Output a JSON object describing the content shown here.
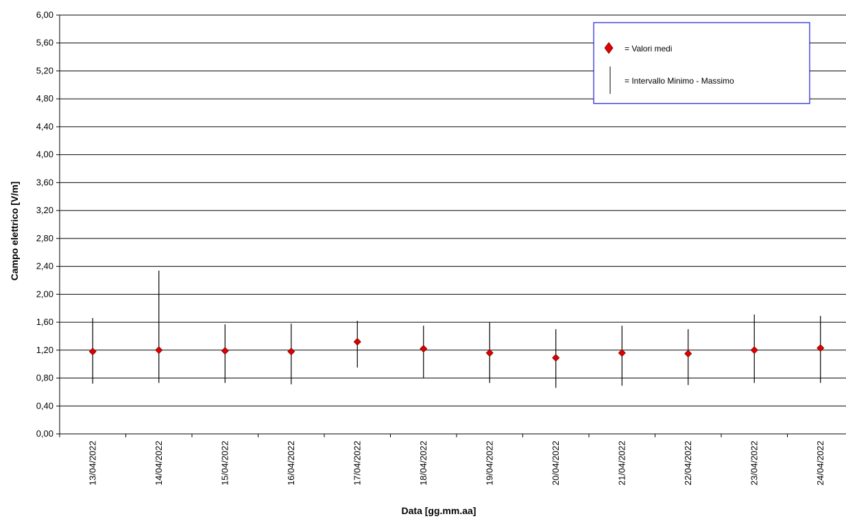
{
  "chart_data": {
    "type": "scatter",
    "xlabel": "Data [gg.mm.aa]",
    "ylabel": "Campo elettrico [V/m]",
    "ylim": [
      0,
      6
    ],
    "y_ticks": [
      "0,00",
      "0,40",
      "0,80",
      "1,20",
      "1,60",
      "2,00",
      "2,40",
      "2,80",
      "3,20",
      "3,60",
      "4,00",
      "4,40",
      "4,80",
      "5,20",
      "5,60",
      "6,00"
    ],
    "grid": "horizontal",
    "legend_position": "top-right",
    "categories": [
      "13/04/2022",
      "14/04/2022",
      "15/04/2022",
      "16/04/2022",
      "17/04/2022",
      "18/04/2022",
      "19/04/2022",
      "20/04/2022",
      "21/04/2022",
      "22/04/2022",
      "23/04/2022",
      "24/04/2022"
    ],
    "series": [
      {
        "name": "= Valori medi",
        "marker": "diamond",
        "color": "#e00000",
        "values": [
          1.18,
          1.2,
          1.19,
          1.18,
          1.32,
          1.22,
          1.16,
          1.09,
          1.16,
          1.15,
          1.2,
          1.23
        ]
      },
      {
        "name": "= Intervallo Minimo - Massimo",
        "marker": "vertical-line",
        "color": "#000000",
        "min": [
          0.72,
          0.73,
          0.73,
          0.71,
          0.95,
          0.8,
          0.73,
          0.66,
          0.69,
          0.7,
          0.73,
          0.73
        ],
        "max": [
          1.66,
          2.34,
          1.57,
          1.58,
          1.62,
          1.55,
          1.6,
          1.5,
          1.55,
          1.5,
          1.71,
          1.69
        ]
      }
    ]
  }
}
